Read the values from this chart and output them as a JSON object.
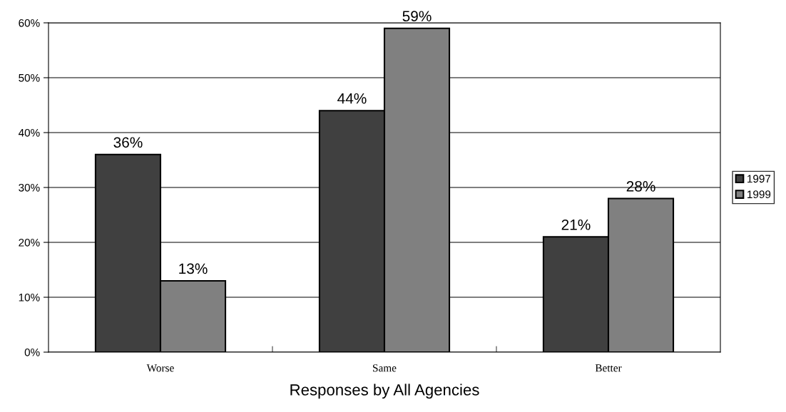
{
  "chart_data": {
    "type": "bar",
    "xlabel": "Responses by All Agencies",
    "categories": [
      "Worse",
      "Same",
      "Better"
    ],
    "series": [
      {
        "name": "1997",
        "color": "#404040",
        "values": [
          36,
          44,
          21
        ],
        "value_labels": [
          "36%",
          "44%",
          "21%"
        ]
      },
      {
        "name": "1999",
        "color": "#808080",
        "values": [
          13,
          59,
          28
        ],
        "value_labels": [
          "13%",
          "59%",
          "28%"
        ]
      }
    ],
    "ylim": [
      0,
      60
    ],
    "yticks": [
      {
        "value": 0,
        "label": "0%"
      },
      {
        "value": 10,
        "label": "10%"
      },
      {
        "value": 20,
        "label": "20%"
      },
      {
        "value": 30,
        "label": "30%"
      },
      {
        "value": 40,
        "label": "40%"
      },
      {
        "value": 50,
        "label": "50%"
      },
      {
        "value": 60,
        "label": "60%"
      }
    ],
    "grid": "y",
    "legend": "right"
  }
}
